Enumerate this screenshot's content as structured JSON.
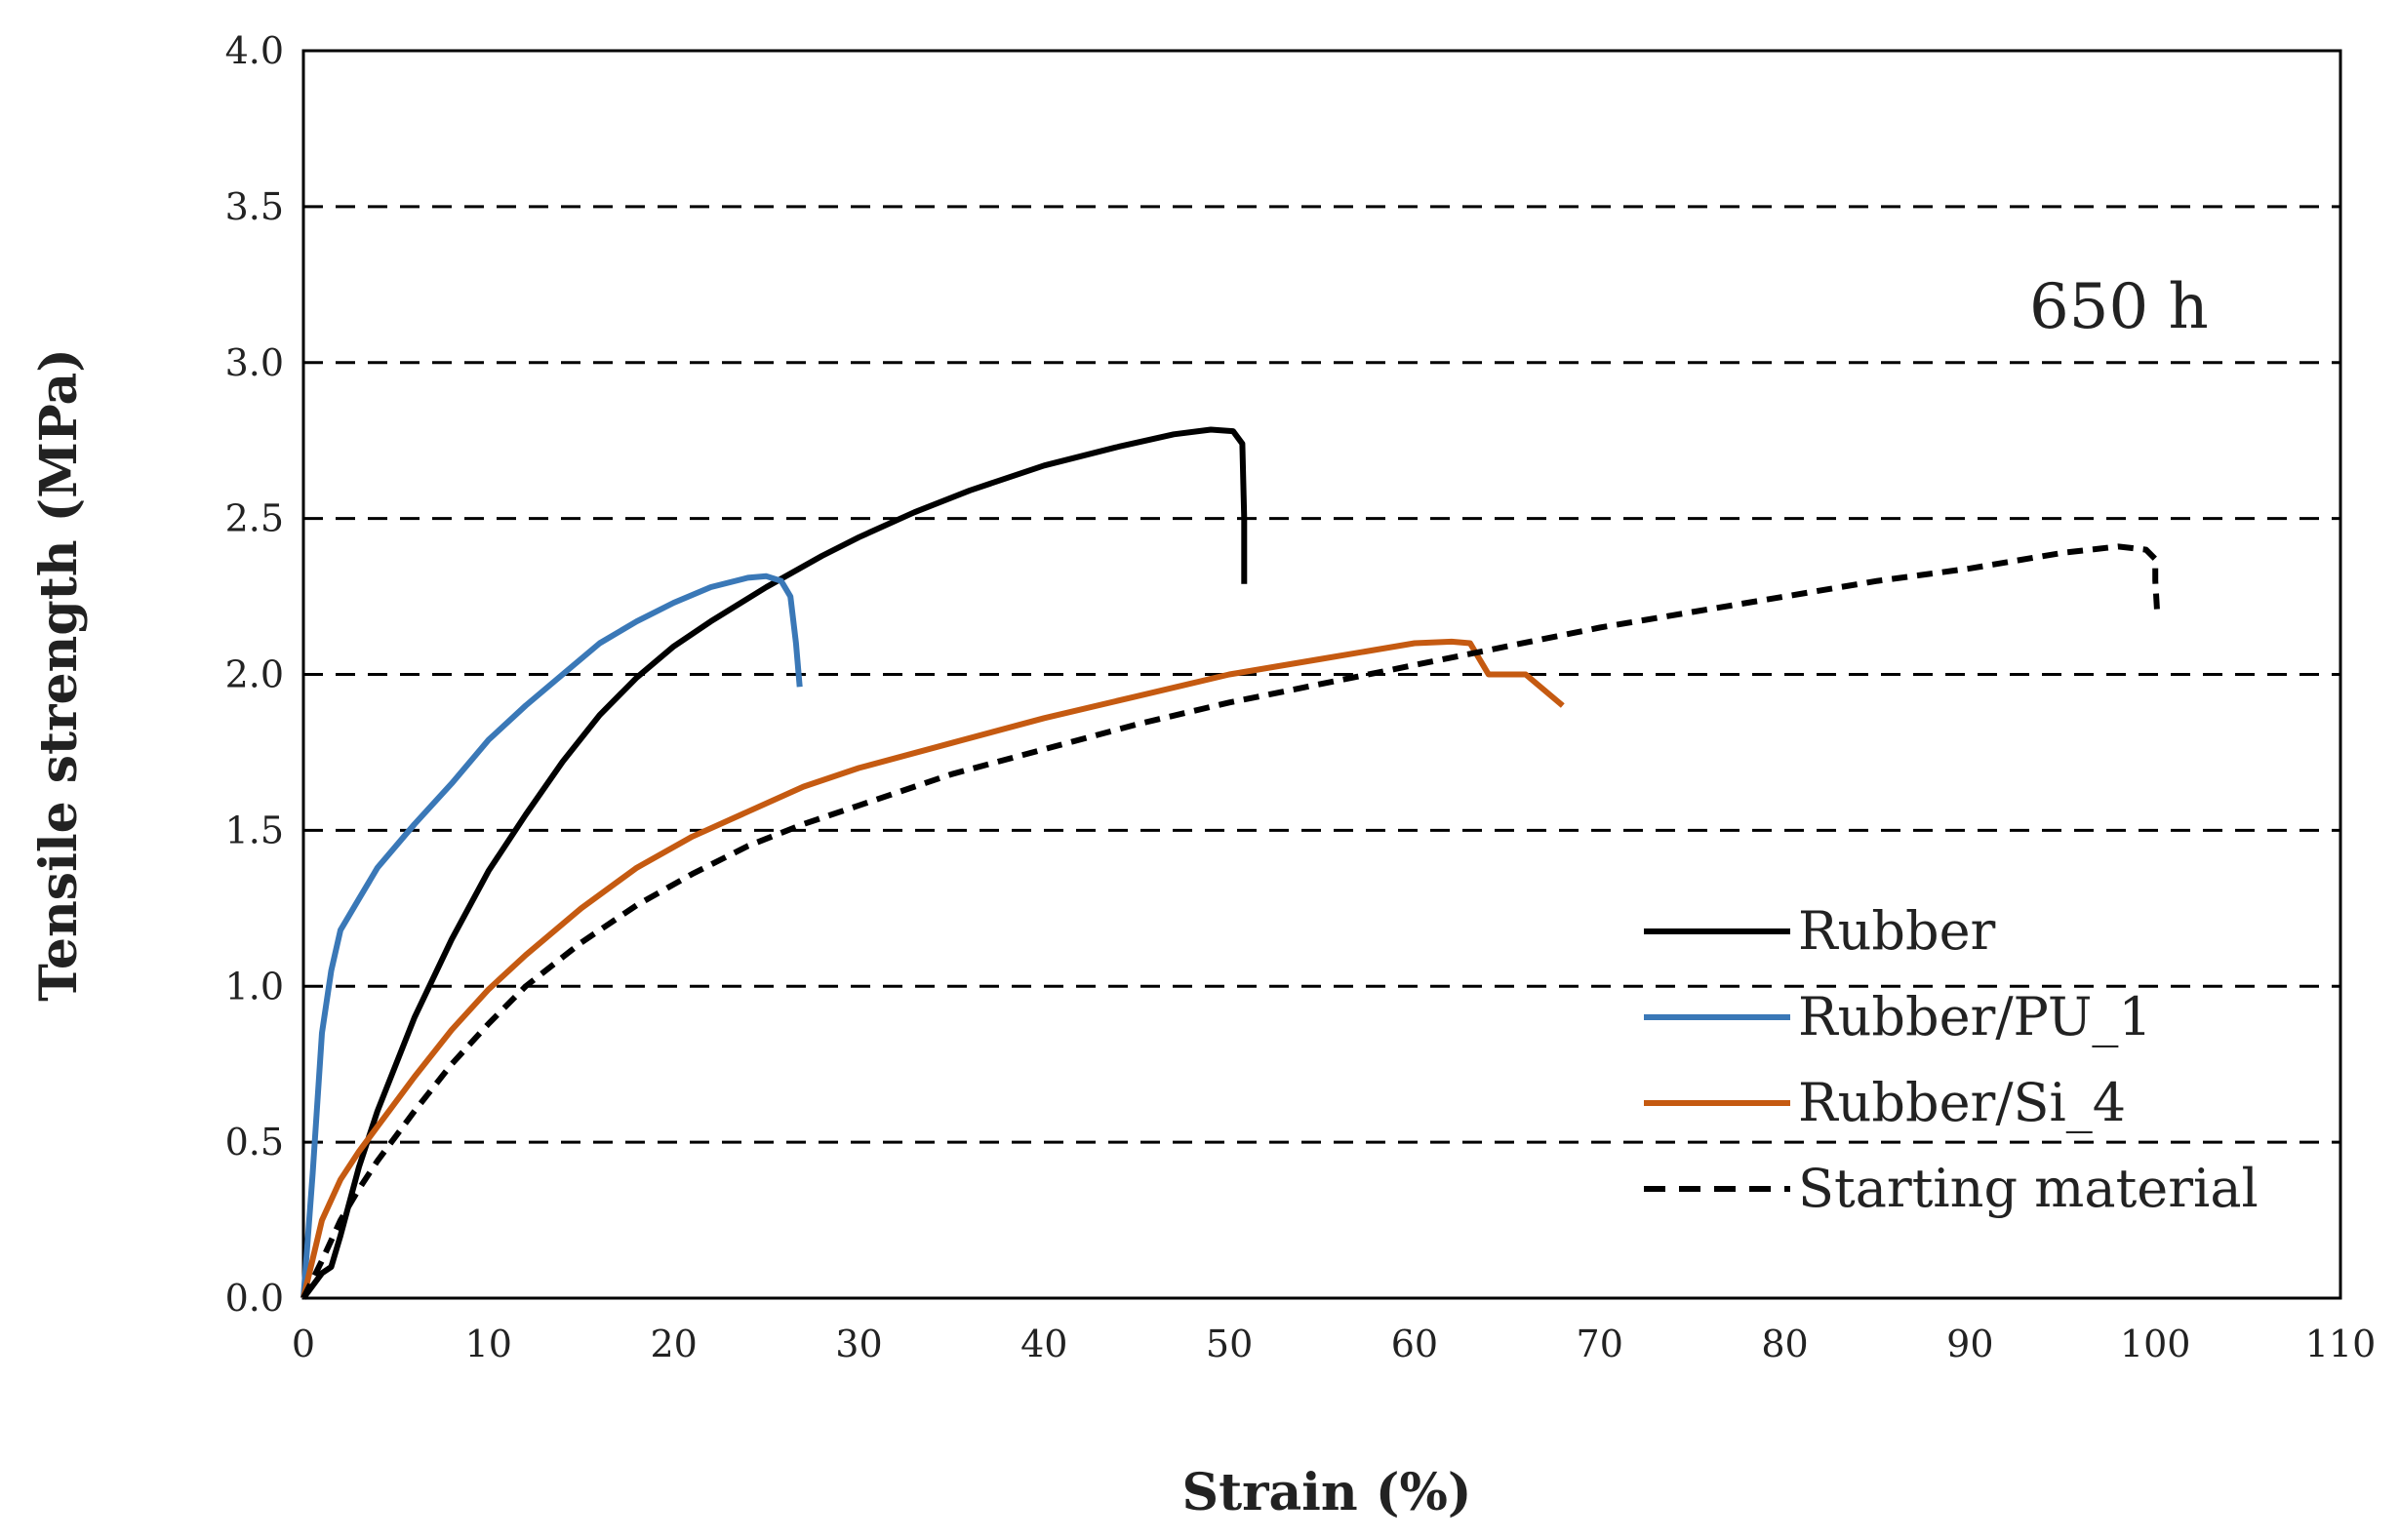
{
  "chart_data": {
    "type": "line",
    "title": "",
    "annotation": "650 h",
    "xlabel": "Strain (%)",
    "ylabel": "Tensile strength (MPa)",
    "xlim": [
      0,
      110
    ],
    "ylim": [
      0,
      4.0
    ],
    "xticks": [
      0,
      10,
      20,
      30,
      40,
      50,
      60,
      70,
      80,
      90,
      100,
      110
    ],
    "yticks": [
      "0.0",
      "0.5",
      "1.0",
      "1.5",
      "2.0",
      "2.5",
      "3.0",
      "3.5",
      "4.0"
    ],
    "grid": "horizontal dashed",
    "legend_position": "bottom-right",
    "series": [
      {
        "name": "Rubber",
        "color": "#000000",
        "dash": "solid",
        "x": [
          0,
          1,
          1.5,
          2,
          3,
          4,
          6,
          8,
          10,
          12,
          14,
          16,
          18,
          20,
          22,
          25,
          28,
          30,
          33,
          36,
          40,
          44,
          47,
          49,
          50.2,
          50.7,
          50.8,
          50.8
        ],
        "y": [
          0,
          0.08,
          0.1,
          0.2,
          0.42,
          0.6,
          0.9,
          1.15,
          1.37,
          1.55,
          1.72,
          1.87,
          1.99,
          2.09,
          2.17,
          2.28,
          2.38,
          2.44,
          2.52,
          2.59,
          2.67,
          2.73,
          2.77,
          2.785,
          2.78,
          2.74,
          2.5,
          2.29
        ]
      },
      {
        "name": "Rubber/PU_1",
        "color": "#3a78b7",
        "dash": "solid",
        "x": [
          0,
          0.5,
          1,
          1.5,
          2,
          3,
          4,
          6,
          8,
          10,
          12,
          14,
          16,
          18,
          20,
          22,
          24,
          25,
          25.8,
          26.3,
          26.6,
          26.8
        ],
        "y": [
          0,
          0.4,
          0.85,
          1.05,
          1.18,
          1.28,
          1.38,
          1.52,
          1.65,
          1.79,
          1.9,
          2.0,
          2.1,
          2.17,
          2.23,
          2.28,
          2.31,
          2.315,
          2.3,
          2.25,
          2.1,
          1.96
        ]
      },
      {
        "name": "Rubber/Si_4",
        "color": "#c55a11",
        "dash": "solid",
        "x": [
          0,
          1,
          2,
          3,
          4,
          6,
          8,
          10,
          12,
          15,
          18,
          21,
          24,
          27,
          30,
          35,
          40,
          45,
          50,
          55,
          60,
          62,
          63,
          63.5,
          64,
          66,
          68
        ],
        "y": [
          0,
          0.25,
          0.38,
          0.47,
          0.55,
          0.71,
          0.86,
          0.99,
          1.1,
          1.25,
          1.38,
          1.48,
          1.56,
          1.64,
          1.7,
          1.78,
          1.86,
          1.93,
          2.0,
          2.05,
          2.1,
          2.105,
          2.1,
          2.05,
          2.0,
          2.0,
          1.9
        ]
      },
      {
        "name": "Starting material",
        "color": "#000000",
        "dash": "dashed",
        "x": [
          0,
          1,
          2,
          3,
          4,
          6,
          8,
          10,
          12,
          15,
          18,
          21,
          24,
          27,
          30,
          35,
          40,
          45,
          50,
          55,
          60,
          65,
          70,
          75,
          80,
          85,
          90,
          95,
          98,
          99.5,
          100,
          100,
          100.1
        ],
        "y": [
          0,
          0.12,
          0.25,
          0.35,
          0.44,
          0.6,
          0.75,
          0.88,
          1.0,
          1.14,
          1.26,
          1.36,
          1.45,
          1.52,
          1.58,
          1.68,
          1.76,
          1.84,
          1.91,
          1.97,
          2.03,
          2.09,
          2.15,
          2.2,
          2.25,
          2.3,
          2.34,
          2.39,
          2.41,
          2.4,
          2.37,
          2.3,
          2.2
        ]
      }
    ]
  }
}
